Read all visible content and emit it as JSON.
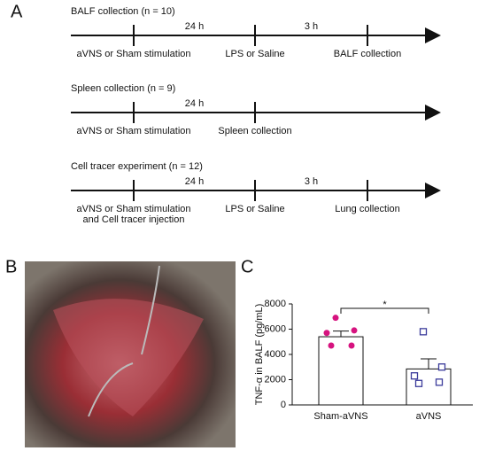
{
  "panel_a": {
    "label": "A",
    "timelines": [
      {
        "title": "BALF collection (n = 10)",
        "intervals": [
          "24 h",
          "3 h"
        ],
        "events": [
          [
            "aVNS or Sham stimulation"
          ],
          [
            "LPS or Saline"
          ],
          [
            "BALF collection"
          ]
        ]
      },
      {
        "title": "Spleen collection (n = 9)",
        "intervals": [
          "24 h"
        ],
        "events": [
          [
            "aVNS or Sham stimulation"
          ],
          [
            "Spleen collection"
          ]
        ]
      },
      {
        "title": "Cell tracer experiment (n = 12)",
        "intervals": [
          "24 h",
          "3 h"
        ],
        "events": [
          [
            "aVNS or Sham stimulation",
            "and Cell tracer injection"
          ],
          [
            "LPS or Saline"
          ],
          [
            "Lung collection"
          ]
        ]
      }
    ]
  },
  "panel_b": {
    "label": "B"
  },
  "chart_data": {
    "type": "bar",
    "label": "C",
    "y_label": "TNF-α in BALF (pg/mL)",
    "categories": [
      "Sham-aVNS",
      "aVNS"
    ],
    "values": [
      5400,
      2850
    ],
    "errors": [
      450,
      800
    ],
    "points": [
      [
        6900,
        5900,
        5700,
        4700,
        4700
      ],
      [
        5800,
        3000,
        2300,
        1700,
        1800
      ]
    ],
    "point_colors": [
      "#d6137f",
      "#3b3b9b"
    ],
    "point_markers": [
      "circle",
      "square"
    ],
    "ylim": [
      0,
      8000
    ],
    "yticks": [
      0,
      2000,
      4000,
      6000,
      8000
    ],
    "annotation": "*"
  }
}
